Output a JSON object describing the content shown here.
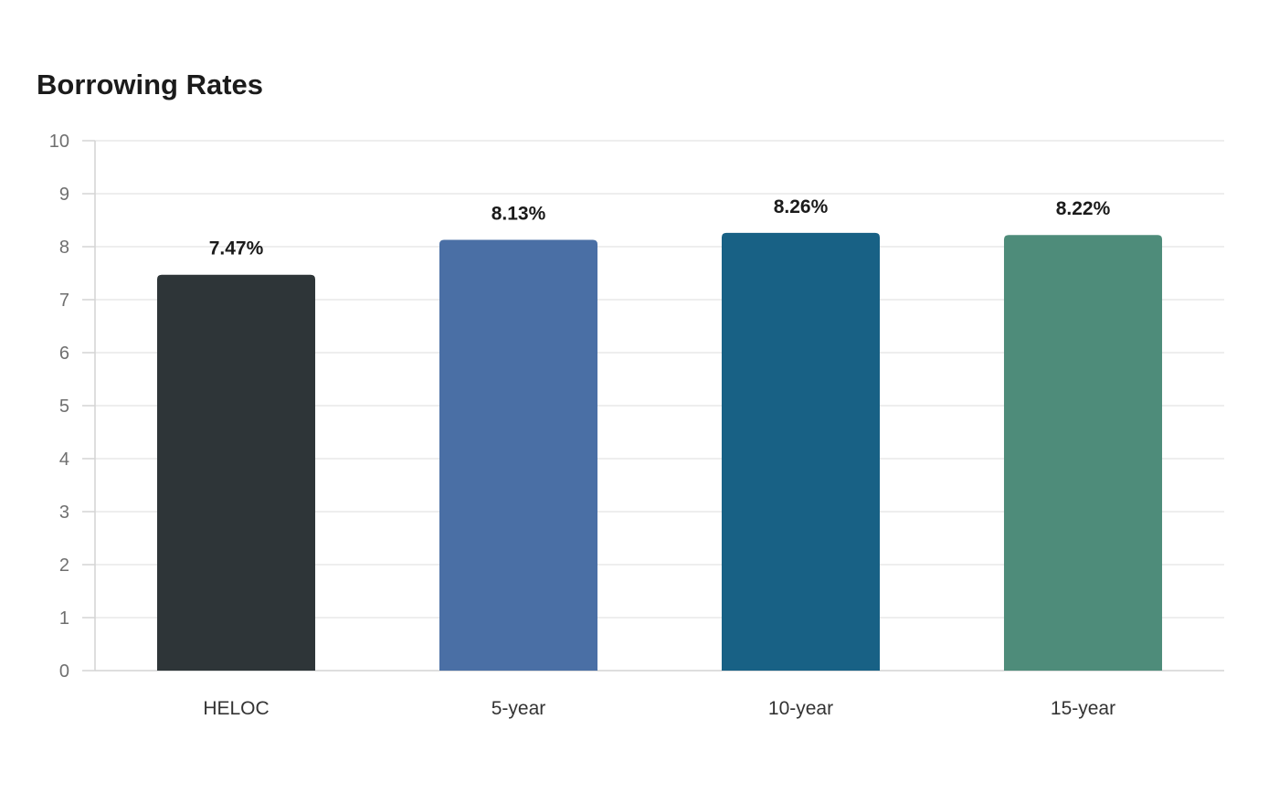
{
  "chart_data": {
    "type": "bar",
    "title": "Borrowing Rates",
    "categories": [
      "HELOC",
      "5-year",
      "10-year",
      "15-year"
    ],
    "values": [
      7.47,
      8.13,
      8.26,
      8.22
    ],
    "data_labels": [
      "7.47%",
      "8.13%",
      "8.26%",
      "8.22%"
    ],
    "colors": [
      "#2e3538",
      "#4a6fa5",
      "#186185",
      "#4e8c7a"
    ],
    "xlabel": "",
    "ylabel": "",
    "ylim": [
      0,
      10
    ],
    "yticks": [
      0,
      1,
      2,
      3,
      4,
      5,
      6,
      7,
      8,
      9,
      10
    ],
    "grid": true,
    "legend": "none"
  }
}
